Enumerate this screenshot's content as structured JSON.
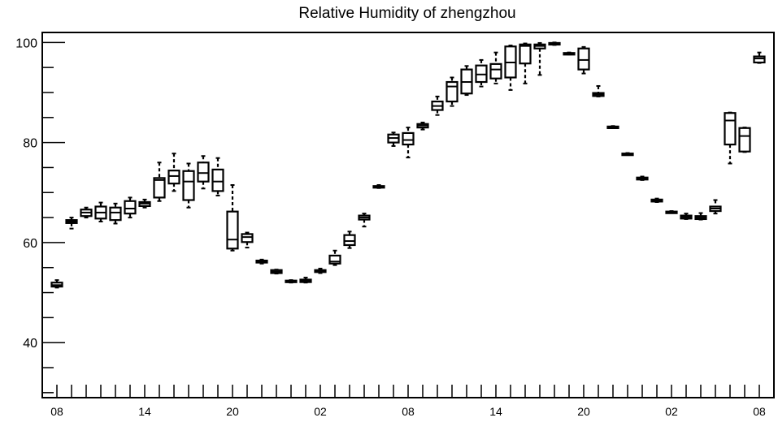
{
  "chart_data": {
    "type": "boxplot",
    "title": "Relative Humidity of zhengzhou",
    "xlabel": "",
    "ylabel": "",
    "ylim": [
      29,
      102
    ],
    "yticks": [
      40,
      60,
      80,
      100
    ],
    "x_hours": [
      8,
      9,
      10,
      11,
      12,
      13,
      14,
      15,
      16,
      17,
      18,
      19,
      20,
      21,
      22,
      23,
      0,
      1,
      2,
      3,
      4,
      5,
      6,
      7,
      8,
      9,
      10,
      11,
      12,
      13,
      14,
      15,
      16,
      17,
      18,
      19,
      20,
      21,
      22,
      23,
      0,
      1,
      2,
      3,
      4,
      5,
      6,
      7,
      8
    ],
    "x_tick_labels": [
      "08",
      "",
      "",
      "",
      "",
      "",
      "14",
      "",
      "",
      "",
      "",
      "",
      "20",
      "",
      "",
      "",
      "",
      "",
      "02",
      "",
      "",
      "",
      "",
      "",
      "08",
      "",
      "",
      "",
      "",
      "",
      "14",
      "",
      "",
      "",
      "",
      "",
      "20",
      "",
      "",
      "",
      "",
      "",
      "02",
      "",
      "",
      "",
      "",
      "",
      "08"
    ],
    "grid": false,
    "legend": "none",
    "boxes": [
      {
        "x": 8,
        "min": 51.0,
        "q1": 51.2,
        "median": 51.5,
        "q3": 52.0,
        "max": 52.5
      },
      {
        "x": 9,
        "min": 62.8,
        "q1": 63.9,
        "median": 64.2,
        "q3": 64.5,
        "max": 65.0
      },
      {
        "x": 10,
        "min": 65.0,
        "q1": 65.3,
        "median": 66.0,
        "q3": 66.6,
        "max": 67.0
      },
      {
        "x": 11,
        "min": 64.2,
        "q1": 64.8,
        "median": 66.0,
        "q3": 67.2,
        "max": 68.0
      },
      {
        "x": 12,
        "min": 63.8,
        "q1": 64.5,
        "median": 66.0,
        "q3": 67.0,
        "max": 67.8
      },
      {
        "x": 13,
        "min": 65.0,
        "q1": 65.8,
        "median": 66.8,
        "q3": 68.3,
        "max": 69.0
      },
      {
        "x": 14,
        "min": 67.0,
        "q1": 67.3,
        "median": 67.8,
        "q3": 68.1,
        "max": 68.6
      },
      {
        "x": 15,
        "min": 68.3,
        "q1": 69.0,
        "median": 72.5,
        "q3": 72.9,
        "max": 76.0
      },
      {
        "x": 16,
        "min": 70.3,
        "q1": 71.8,
        "median": 73.3,
        "q3": 74.4,
        "max": 77.8
      },
      {
        "x": 17,
        "min": 67.0,
        "q1": 68.5,
        "median": 72.2,
        "q3": 74.3,
        "max": 75.8
      },
      {
        "x": 18,
        "min": 70.8,
        "q1": 72.2,
        "median": 73.9,
        "q3": 76.0,
        "max": 77.3
      },
      {
        "x": 19,
        "min": 69.4,
        "q1": 70.3,
        "median": 72.2,
        "q3": 74.6,
        "max": 76.9
      },
      {
        "x": 20,
        "min": 58.4,
        "q1": 58.8,
        "median": 60.6,
        "q3": 66.2,
        "max": 71.5
      },
      {
        "x": 21,
        "min": 59.0,
        "q1": 60.1,
        "median": 61.1,
        "q3": 61.7,
        "max": 62.0
      },
      {
        "x": 22,
        "min": 55.8,
        "q1": 56.0,
        "median": 56.2,
        "q3": 56.4,
        "max": 56.6
      },
      {
        "x": 23,
        "min": 53.8,
        "q1": 53.9,
        "median": 54.2,
        "q3": 54.5,
        "max": 54.6
      },
      {
        "x": 0,
        "min": 52.0,
        "q1": 52.2,
        "median": 52.3,
        "q3": 52.4,
        "max": 52.5
      },
      {
        "x": 1,
        "min": 52.0,
        "q1": 52.1,
        "median": 52.4,
        "q3": 52.6,
        "max": 53.0
      },
      {
        "x": 2,
        "min": 53.9,
        "q1": 54.1,
        "median": 54.3,
        "q3": 54.5,
        "max": 54.8
      },
      {
        "x": 3,
        "min": 55.5,
        "q1": 55.8,
        "median": 56.2,
        "q3": 57.4,
        "max": 58.4
      },
      {
        "x": 4,
        "min": 58.9,
        "q1": 59.5,
        "median": 60.3,
        "q3": 61.5,
        "max": 62.2
      },
      {
        "x": 5,
        "min": 63.2,
        "q1": 64.6,
        "median": 65.0,
        "q3": 65.4,
        "max": 65.8
      },
      {
        "x": 6,
        "min": 70.9,
        "q1": 71.0,
        "median": 71.2,
        "q3": 71.3,
        "max": 71.5
      },
      {
        "x": 7,
        "min": 79.3,
        "q1": 80.0,
        "median": 80.9,
        "q3": 81.6,
        "max": 82.0
      },
      {
        "x": 8,
        "min": 77.0,
        "q1": 79.6,
        "median": 80.5,
        "q3": 81.9,
        "max": 83.0
      },
      {
        "x": 9,
        "min": 82.6,
        "q1": 83.0,
        "median": 83.4,
        "q3": 83.7,
        "max": 84.0
      },
      {
        "x": 10,
        "min": 85.5,
        "q1": 86.5,
        "median": 87.3,
        "q3": 88.2,
        "max": 89.2
      },
      {
        "x": 11,
        "min": 87.3,
        "q1": 88.2,
        "median": 91.2,
        "q3": 92.1,
        "max": 93.0
      },
      {
        "x": 12,
        "min": 89.5,
        "q1": 89.8,
        "median": 92.1,
        "q3": 94.6,
        "max": 95.3
      },
      {
        "x": 13,
        "min": 91.2,
        "q1": 92.1,
        "median": 93.6,
        "q3": 95.4,
        "max": 96.5
      },
      {
        "x": 14,
        "min": 91.8,
        "q1": 92.8,
        "median": 94.6,
        "q3": 95.7,
        "max": 98.0
      },
      {
        "x": 15,
        "min": 90.5,
        "q1": 93.0,
        "median": 96.0,
        "q3": 99.2,
        "max": 99.4
      },
      {
        "x": 16,
        "min": 91.8,
        "q1": 95.8,
        "median": 99.3,
        "q3": 99.6,
        "max": 99.8
      },
      {
        "x": 17,
        "min": 93.5,
        "q1": 98.8,
        "median": 99.3,
        "q3": 99.6,
        "max": 99.9
      },
      {
        "x": 18,
        "min": 99.5,
        "q1": 99.7,
        "median": 99.8,
        "q3": 99.9,
        "max": 100.0
      },
      {
        "x": 19,
        "min": 97.6,
        "q1": 97.7,
        "median": 97.8,
        "q3": 97.9,
        "max": 98.0
      },
      {
        "x": 20,
        "min": 93.8,
        "q1": 94.6,
        "median": 96.5,
        "q3": 98.8,
        "max": 99.1
      },
      {
        "x": 21,
        "min": 89.2,
        "q1": 89.3,
        "median": 89.6,
        "q3": 89.9,
        "max": 91.3
      },
      {
        "x": 22,
        "min": 82.9,
        "q1": 83.0,
        "median": 83.1,
        "q3": 83.2,
        "max": 83.3
      },
      {
        "x": 23,
        "min": 77.5,
        "q1": 77.6,
        "median": 77.7,
        "q3": 77.8,
        "max": 77.9
      },
      {
        "x": 0,
        "min": 72.5,
        "q1": 72.6,
        "median": 72.8,
        "q3": 73.0,
        "max": 73.2
      },
      {
        "x": 1,
        "min": 68.1,
        "q1": 68.2,
        "median": 68.4,
        "q3": 68.6,
        "max": 68.8
      },
      {
        "x": 2,
        "min": 65.9,
        "q1": 66.0,
        "median": 66.1,
        "q3": 66.2,
        "max": 66.3
      },
      {
        "x": 3,
        "min": 64.7,
        "q1": 64.8,
        "median": 65.1,
        "q3": 65.4,
        "max": 65.8
      },
      {
        "x": 4,
        "min": 64.6,
        "q1": 64.7,
        "median": 65.0,
        "q3": 65.3,
        "max": 65.9
      },
      {
        "x": 5,
        "min": 65.8,
        "q1": 66.3,
        "median": 66.8,
        "q3": 67.2,
        "max": 68.5
      },
      {
        "x": 6,
        "min": 75.8,
        "q1": 79.6,
        "median": 84.4,
        "q3": 85.9,
        "max": 86.0
      },
      {
        "x": 7,
        "min": 78.1,
        "q1": 78.2,
        "median": 81.3,
        "q3": 82.9,
        "max": 83.0
      },
      {
        "x": 8,
        "min": 95.9,
        "q1": 96.0,
        "median": 96.8,
        "q3": 97.2,
        "max": 98.0
      }
    ]
  }
}
